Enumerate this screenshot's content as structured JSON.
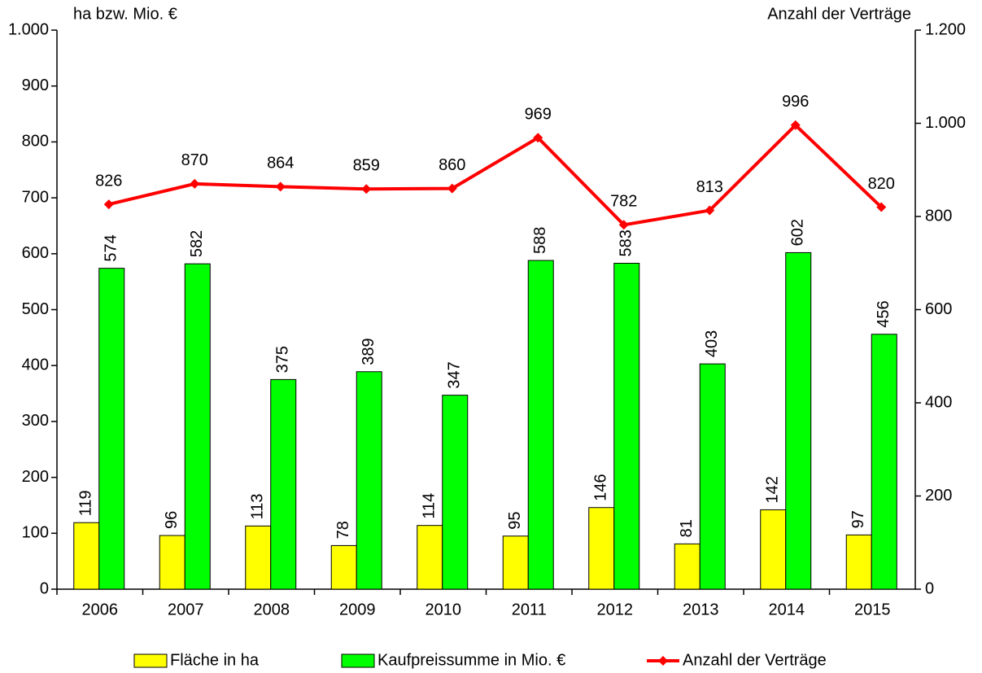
{
  "chart_data": {
    "type": "bar",
    "y_label": "ha bzw. Mio. €",
    "y2_label": "Anzahl der Verträge",
    "categories": [
      "2006",
      "2007",
      "2008",
      "2009",
      "2010",
      "2011",
      "2012",
      "2013",
      "2014",
      "2015"
    ],
    "series": [
      {
        "name": "Fläche in ha",
        "type": "bar",
        "color": "#ffff00",
        "values": [
          119,
          96,
          113,
          78,
          114,
          95,
          146,
          81,
          142,
          97
        ]
      },
      {
        "name": "Kaufpreissumme in Mio. €",
        "type": "bar",
        "color": "#00ff00",
        "values": [
          574,
          582,
          375,
          389,
          347,
          588,
          583,
          403,
          602,
          456
        ]
      },
      {
        "name": "Anzahl der Verträge",
        "type": "line",
        "axis": "y2",
        "color": "#ff0000",
        "values": [
          826,
          870,
          864,
          859,
          860,
          969,
          782,
          813,
          996,
          820
        ]
      }
    ],
    "ylim": [
      0,
      1000
    ],
    "yticks": [
      0,
      100,
      200,
      300,
      400,
      500,
      600,
      700,
      800,
      900,
      {
        "value": 1000,
        "label": "1.000"
      }
    ],
    "y2lim": [
      0,
      1200
    ],
    "y2ticks": [
      0,
      200,
      400,
      600,
      800,
      {
        "value": 1000,
        "label": "1.000"
      },
      {
        "value": 1200,
        "label": "1.200"
      }
    ],
    "grid": false,
    "legend": "bottom"
  }
}
